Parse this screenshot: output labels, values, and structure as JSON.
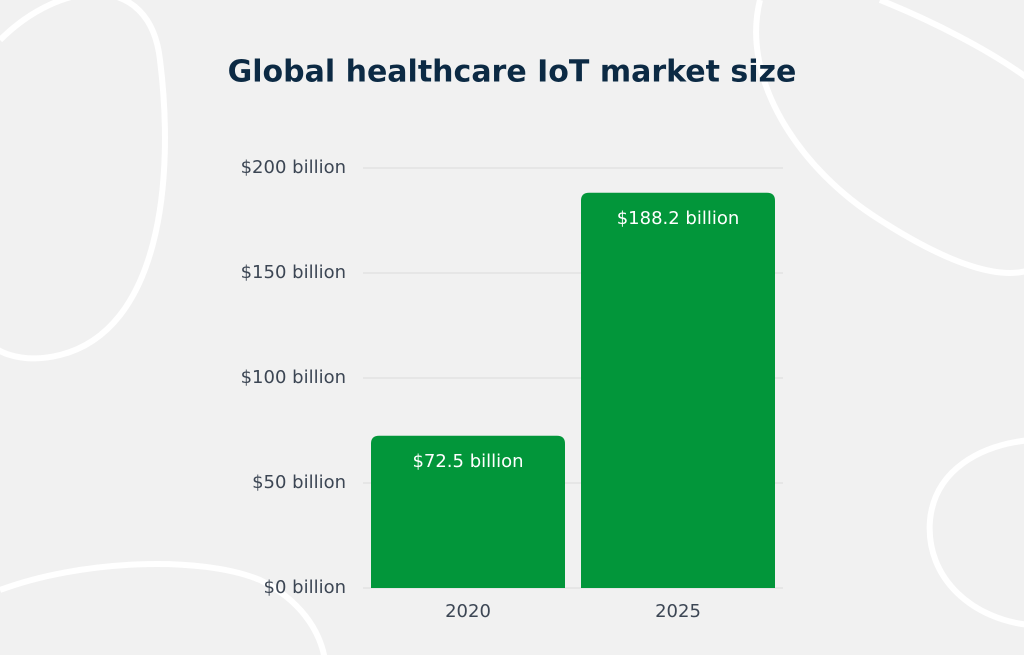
{
  "chart_data": {
    "type": "bar",
    "title": "Global healthcare IoT market size",
    "categories": [
      "2020",
      "2025"
    ],
    "values": [
      72.5,
      188.2
    ],
    "value_labels": [
      "$72.5 billion",
      "$188.2 billion"
    ],
    "color": "#02963a",
    "ylim": [
      0,
      200
    ],
    "yticks": [
      {
        "value": 0,
        "label": "$0 billion"
      },
      {
        "value": 50,
        "label": "$50 billion"
      },
      {
        "value": 100,
        "label": "$100 billion"
      },
      {
        "value": 150,
        "label": "$150 billion"
      },
      {
        "value": 200,
        "label": "$200 billion"
      }
    ],
    "grid": true
  }
}
